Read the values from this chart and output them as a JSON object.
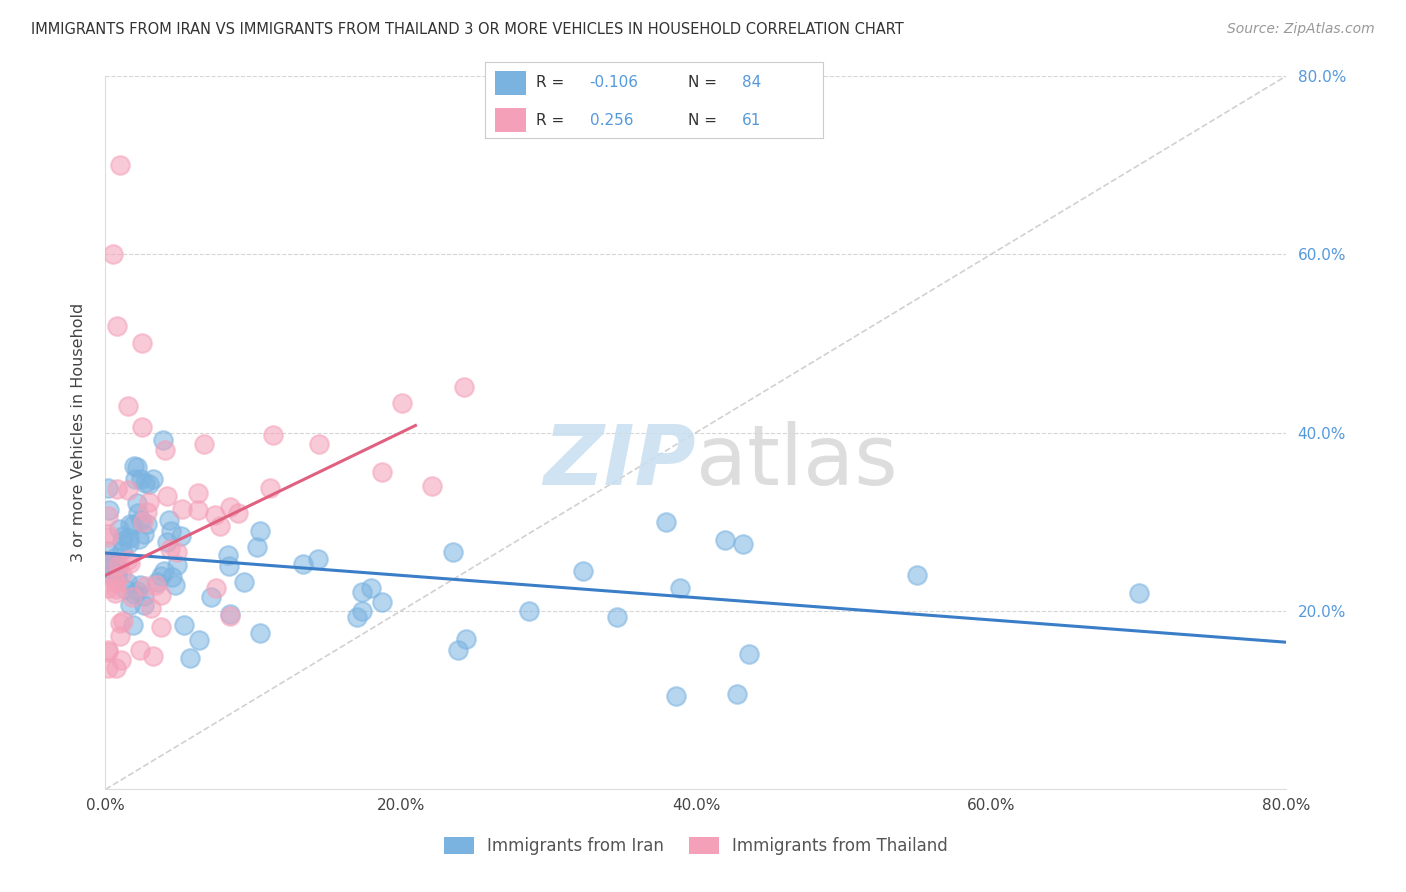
{
  "title": "IMMIGRANTS FROM IRAN VS IMMIGRANTS FROM THAILAND 3 OR MORE VEHICLES IN HOUSEHOLD CORRELATION CHART",
  "source": "Source: ZipAtlas.com",
  "ylabel": "3 or more Vehicles in Household",
  "x_min": 0.0,
  "x_max": 0.8,
  "y_min": 0.0,
  "y_max": 0.8,
  "iran_color": "#7bb3e0",
  "thailand_color": "#f4a0b8",
  "iran_line_color": "#3a7ec8",
  "thailand_line_color": "#e06080",
  "diagonal_color": "#cccccc",
  "iran_R": -0.106,
  "iran_N": 84,
  "thailand_R": 0.256,
  "thailand_N": 61,
  "legend_label_iran": "Immigrants from Iran",
  "legend_label_thailand": "Immigrants from Thailand",
  "background_color": "#ffffff",
  "grid_color": "#cccccc",
  "right_tick_color": "#5599dd",
  "watermark_zip_color": "#c8dff0",
  "watermark_atlas_color": "#d8d8d8"
}
